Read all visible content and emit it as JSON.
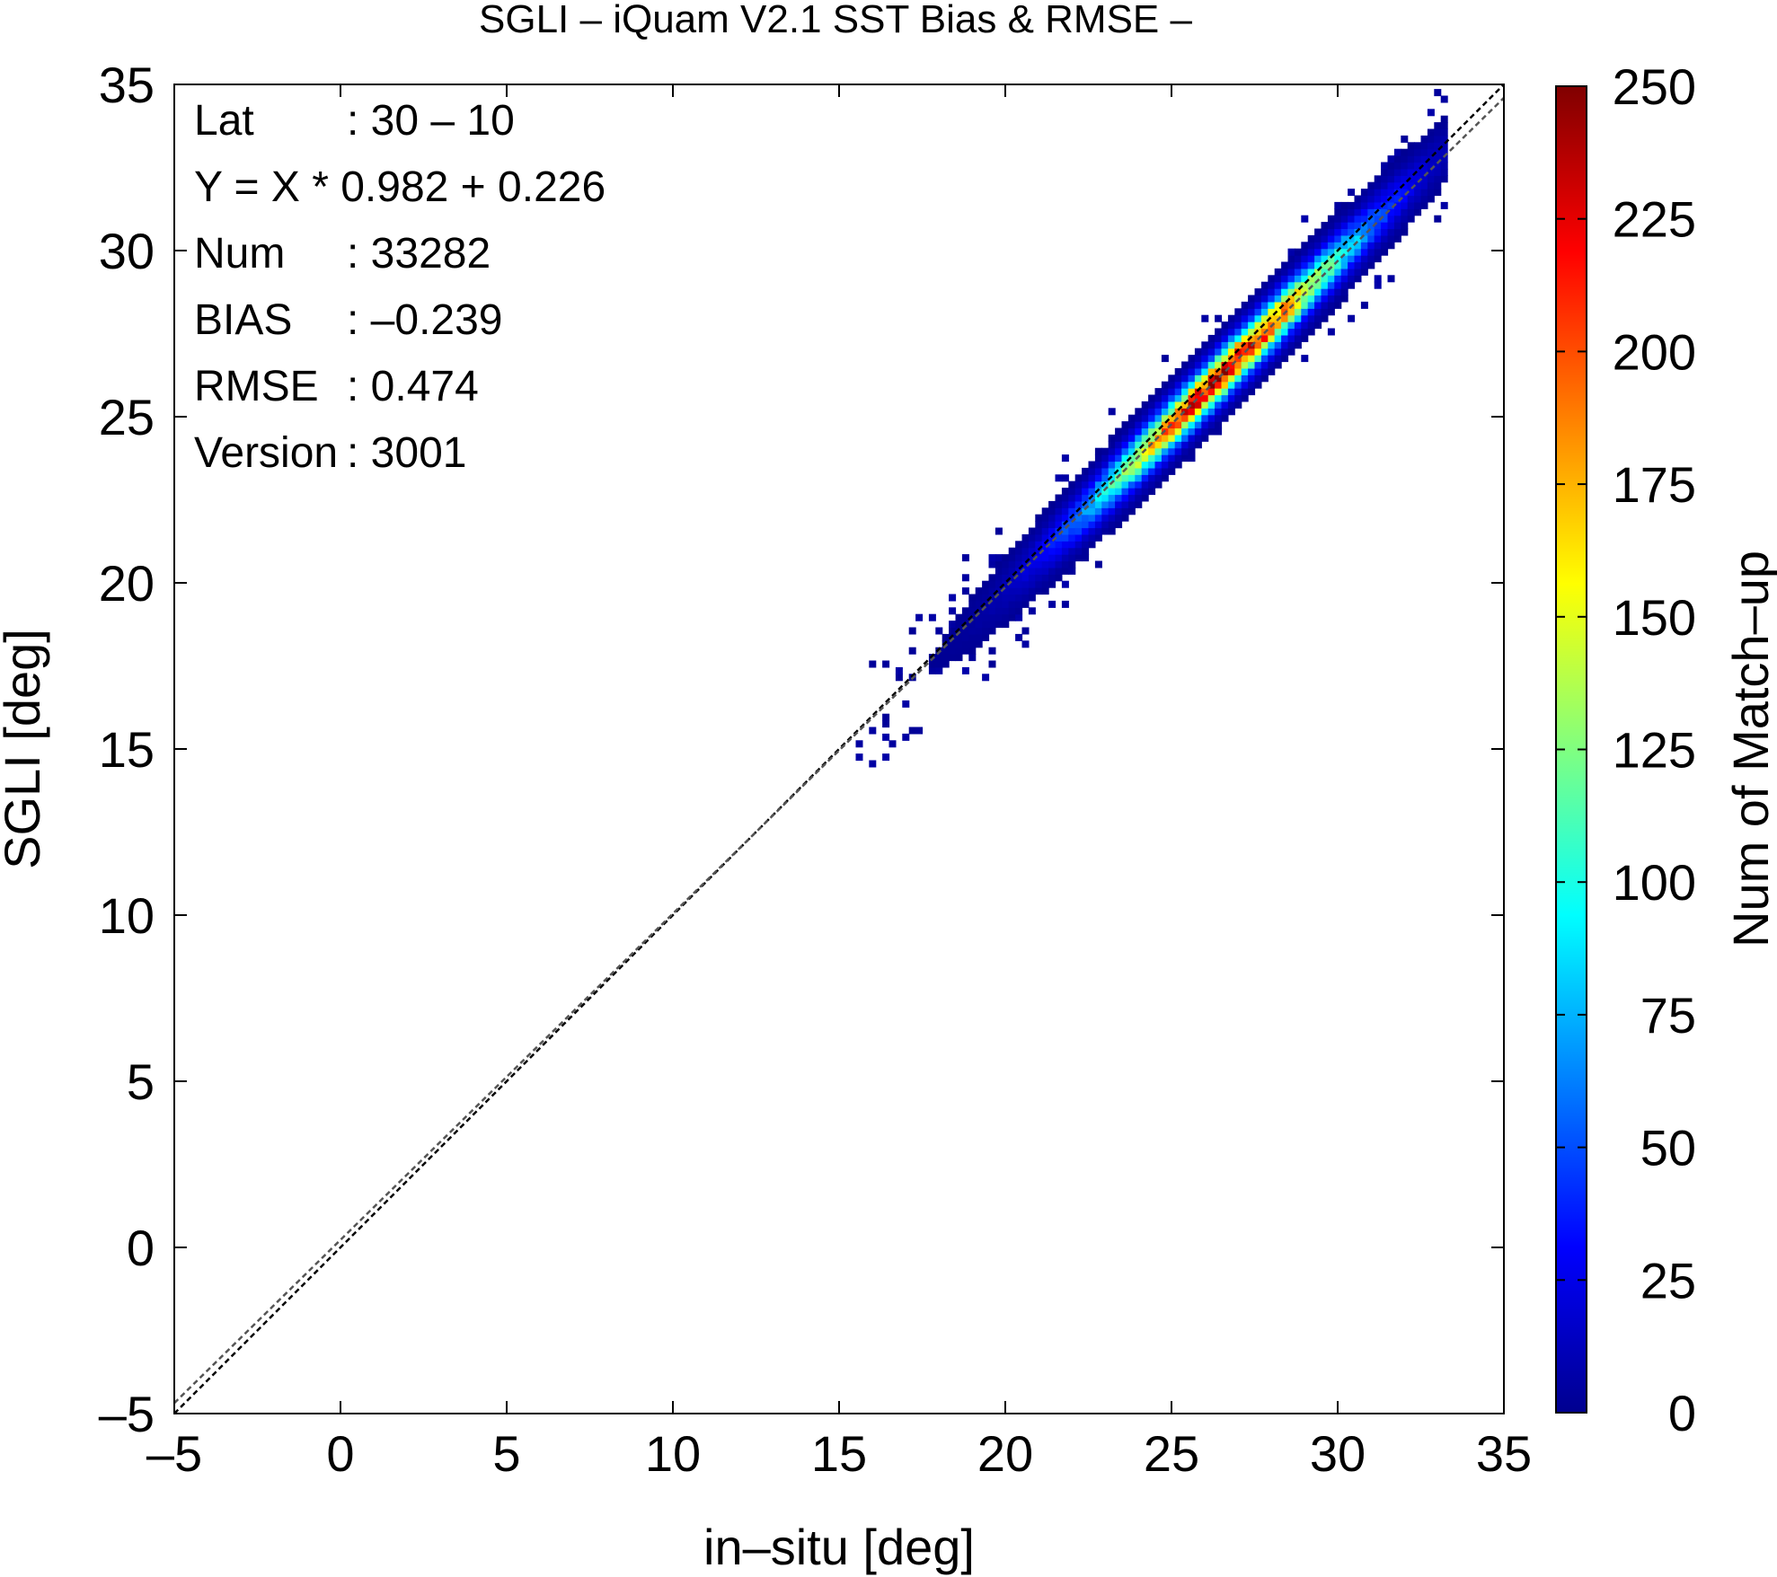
{
  "chart_data": {
    "type": "heatmap",
    "title": "SGLI – iQuam V2.1 SST Bias & RMSE  –",
    "xlabel": "in–situ [deg]",
    "ylabel": "SGLI [deg]",
    "xlim": [
      -5,
      35
    ],
    "ylim": [
      -5,
      35
    ],
    "xticks": [
      "–5",
      "0",
      "5",
      "10",
      "15",
      "20",
      "25",
      "30",
      "35"
    ],
    "yticks": [
      "–5",
      "0",
      "5",
      "10",
      "15",
      "20",
      "25",
      "30",
      "35"
    ],
    "colorbar": {
      "label": "Num of Match–up",
      "range": [
        0,
        250
      ],
      "ticks": [
        "0",
        "25",
        "50",
        "75",
        "100",
        "125",
        "150",
        "175",
        "200",
        "225",
        "250"
      ],
      "colormap": [
        "#00008f",
        "#0000ff",
        "#0080ff",
        "#00ffff",
        "#80ff80",
        "#ffff00",
        "#ff8000",
        "#ff0000",
        "#800000"
      ]
    },
    "stats": [
      {
        "key": "Lat",
        "value": ": 30 – 10"
      },
      {
        "key": "Y = X * 0.982 + 0.226",
        "value": ""
      },
      {
        "key": "Num",
        "value": ": 33282"
      },
      {
        "key": "BIAS",
        "value": ": –0.239"
      },
      {
        "key": "RMSE",
        "value": ": 0.474"
      },
      {
        "key": "Version",
        "value": ": 3001"
      }
    ],
    "reference_lines": [
      {
        "slope": 1.0,
        "intercept": 0.0,
        "style": "dashed",
        "color": "#000000"
      },
      {
        "slope": 0.982,
        "intercept": 0.226,
        "style": "dashed",
        "color": "#555555"
      }
    ],
    "density": {
      "x_range": [
        15.5,
        33.2
      ],
      "peak_x": 26.5,
      "peak_count": 230,
      "spread": 0.47,
      "bias": -0.239
    },
    "grid": false,
    "legend": "colorbar-right"
  }
}
